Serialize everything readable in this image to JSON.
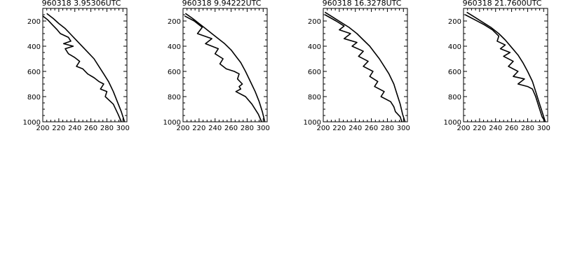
{
  "chart_data": [
    {
      "type": "line",
      "title": "960318   3.95306UTC",
      "xlim": [
        200,
        305
      ],
      "ylim": [
        100,
        1000
      ],
      "y_inverted": true,
      "xticks": [
        "200",
        "220",
        "240",
        "260",
        "280",
        "300"
      ],
      "xtick_values": [
        200,
        220,
        240,
        260,
        280,
        300
      ],
      "yticks": [
        "200",
        "400",
        "600",
        "800",
        "1000"
      ],
      "ytick_values": [
        200,
        400,
        600,
        800,
        1000
      ],
      "series": [
        {
          "x": [
            205,
            213,
            220,
            228,
            234,
            240,
            246,
            252,
            258,
            264,
            270,
            276,
            282,
            288,
            293,
            298,
            302
          ],
          "y": [
            140,
            180,
            220,
            260,
            300,
            340,
            380,
            420,
            460,
            500,
            560,
            620,
            680,
            760,
            840,
            920,
            1000
          ]
        },
        {
          "x": [
            200,
            206,
            212,
            218,
            222,
            232,
            235,
            226,
            238,
            228,
            232,
            240,
            246,
            242,
            250,
            256,
            264,
            270,
            276,
            272,
            280,
            278,
            288,
            294,
            298
          ],
          "y": [
            160,
            190,
            230,
            270,
            300,
            330,
            360,
            380,
            400,
            420,
            460,
            490,
            520,
            560,
            580,
            620,
            650,
            680,
            700,
            740,
            760,
            800,
            860,
            940,
            1000
          ]
        }
      ]
    },
    {
      "type": "line",
      "title": "960318   9.94222UTC",
      "xlim": [
        200,
        305
      ],
      "ylim": [
        100,
        1000
      ],
      "y_inverted": true,
      "xticks": [
        "200",
        "220",
        "240",
        "260",
        "280",
        "300"
      ],
      "xtick_values": [
        200,
        220,
        240,
        260,
        280,
        300
      ],
      "yticks": [
        "200",
        "400",
        "600",
        "800",
        "1000"
      ],
      "ytick_values": [
        200,
        400,
        600,
        800,
        1000
      ],
      "series": [
        {
          "x": [
            203,
            212,
            220,
            228,
            236,
            244,
            252,
            260,
            266,
            272,
            278,
            284,
            290,
            295,
            299,
            302
          ],
          "y": [
            140,
            180,
            220,
            260,
            300,
            340,
            380,
            430,
            480,
            530,
            600,
            680,
            760,
            840,
            920,
            1000
          ]
        },
        {
          "x": [
            202,
            214,
            224,
            218,
            236,
            228,
            244,
            240,
            250,
            246,
            254,
            264,
            270,
            268,
            274,
            270,
            272,
            266,
            278,
            286,
            294,
            298
          ],
          "y": [
            160,
            200,
            250,
            300,
            340,
            380,
            420,
            460,
            500,
            540,
            580,
            600,
            620,
            660,
            700,
            720,
            740,
            760,
            800,
            860,
            940,
            1000
          ]
        }
      ]
    },
    {
      "type": "line",
      "title": "960318   16.3278UTC",
      "xlim": [
        200,
        305
      ],
      "ylim": [
        100,
        1000
      ],
      "y_inverted": true,
      "xticks": [
        "200",
        "220",
        "240",
        "260",
        "280",
        "300"
      ],
      "xtick_values": [
        200,
        220,
        240,
        260,
        280,
        300
      ],
      "yticks": [
        "200",
        "400",
        "600",
        "800",
        "1000"
      ],
      "ytick_values": [
        200,
        400,
        600,
        800,
        1000
      ],
      "series": [
        {
          "x": [
            202,
            212,
            222,
            232,
            242,
            250,
            258,
            264,
            270,
            276,
            282,
            288,
            292,
            296,
            299,
            302
          ],
          "y": [
            130,
            170,
            210,
            250,
            300,
            350,
            400,
            450,
            500,
            560,
            620,
            700,
            780,
            860,
            940,
            1000
          ]
        },
        {
          "x": [
            202,
            216,
            226,
            220,
            234,
            226,
            242,
            236,
            250,
            244,
            256,
            250,
            262,
            258,
            268,
            264,
            276,
            272,
            284,
            288,
            290,
            296,
            298
          ],
          "y": [
            150,
            200,
            240,
            270,
            300,
            340,
            370,
            400,
            440,
            480,
            520,
            560,
            600,
            640,
            680,
            720,
            760,
            800,
            840,
            880,
            920,
            960,
            1000
          ]
        }
      ]
    },
    {
      "type": "line",
      "title": "960318   21.7600UTC",
      "xlim": [
        200,
        305
      ],
      "ylim": [
        100,
        1000
      ],
      "y_inverted": true,
      "xticks": [
        "200",
        "220",
        "240",
        "260",
        "280",
        "300"
      ],
      "xtick_values": [
        200,
        220,
        240,
        260,
        280,
        300
      ],
      "yticks": [
        "200",
        "400",
        "600",
        "800",
        "1000"
      ],
      "ytick_values": [
        200,
        400,
        600,
        800,
        1000
      ],
      "series": [
        {
          "x": [
            204,
            214,
            224,
            234,
            244,
            252,
            260,
            268,
            274,
            280,
            286,
            290,
            294,
            297,
            300,
            302
          ],
          "y": [
            130,
            170,
            210,
            250,
            300,
            350,
            410,
            470,
            530,
            600,
            680,
            760,
            840,
            900,
            960,
            1000
          ]
        },
        {
          "x": [
            202,
            214,
            226,
            236,
            244,
            242,
            252,
            246,
            258,
            250,
            262,
            256,
            268,
            262,
            276,
            268,
            280,
            286,
            290,
            294,
            298,
            302
          ],
          "y": [
            150,
            190,
            230,
            270,
            320,
            360,
            390,
            420,
            450,
            480,
            520,
            560,
            600,
            640,
            660,
            700,
            720,
            740,
            800,
            880,
            960,
            1000
          ]
        }
      ]
    }
  ]
}
